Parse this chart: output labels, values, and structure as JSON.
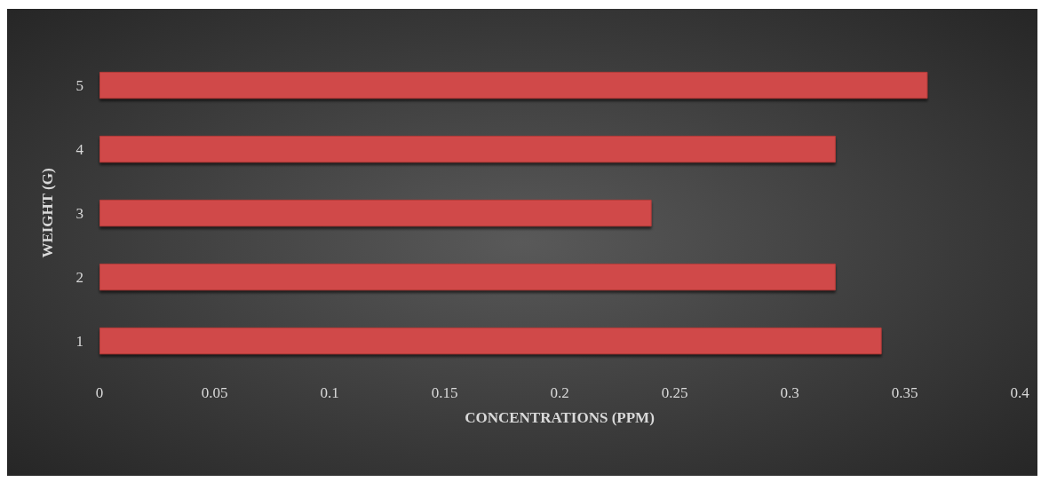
{
  "chart_data": {
    "type": "bar",
    "orientation": "horizontal",
    "xlabel": "CONCENTRATIONS (PPM)",
    "ylabel": "WEIGHT (G)",
    "categories": [
      "5",
      "4",
      "3",
      "2",
      "1"
    ],
    "values": [
      0.36,
      0.32,
      0.24,
      0.32,
      0.34
    ],
    "color": "#d04a48",
    "xlim": [
      0,
      0.4
    ],
    "xticks": [
      0,
      0.05,
      0.1,
      0.15,
      0.2,
      0.25,
      0.3,
      0.35,
      0.4
    ],
    "grid": false
  }
}
